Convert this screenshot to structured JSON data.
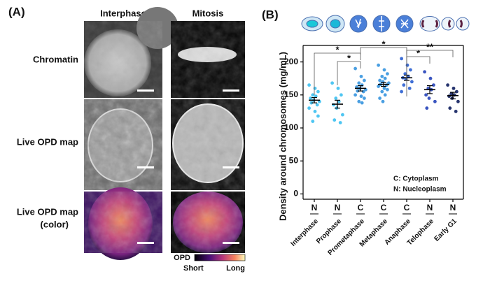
{
  "panel_a": {
    "label": "(A)",
    "columns": [
      "Interphase",
      "Mitosis"
    ],
    "rows": [
      [
        "Chromatin"
      ],
      [
        "Live OPD map"
      ],
      [
        "Live OPD map",
        "(color)"
      ]
    ],
    "colorbar": {
      "title": "OPD",
      "min_label": "Short",
      "max_label": "Long"
    }
  },
  "chart_data": {
    "type": "strip",
    "panel_label": "(B)",
    "y_label": "Density around chromosomes (mg/mL)",
    "categories": [
      "Interphase",
      "Prophase",
      "Prometaphase",
      "Metaphase",
      "Anaphase",
      "Telophase",
      "Early G1"
    ],
    "group_labels": [
      "N",
      "N",
      "C",
      "C",
      "C",
      "N",
      "N"
    ],
    "colors": [
      "#4fc6f2",
      "#4fc6f2",
      "#4a9fe2",
      "#4a9fe2",
      "#3f6fd6",
      "#3a55c0",
      "#26346e"
    ],
    "points": [
      [
        165,
        160,
        155,
        150,
        148,
        145,
        142,
        140,
        138,
        135,
        130,
        125,
        118,
        110
      ],
      [
        168,
        160,
        150,
        145,
        140,
        135,
        130,
        120,
        112,
        108
      ],
      [
        190,
        178,
        172,
        168,
        165,
        162,
        160,
        158,
        156,
        155,
        150,
        148,
        145,
        140,
        138
      ],
      [
        195,
        188,
        182,
        178,
        175,
        172,
        170,
        168,
        166,
        165,
        163,
        160,
        158,
        155,
        150,
        145,
        140
      ],
      [
        205,
        195,
        188,
        182,
        178,
        176,
        174,
        170,
        165,
        160,
        155
      ],
      [
        185,
        175,
        165,
        160,
        158,
        150,
        145,
        140,
        130
      ],
      [
        165,
        160,
        155,
        152,
        150,
        148,
        145,
        140,
        130,
        125
      ]
    ],
    "means": [
      142,
      136,
      160,
      166,
      176,
      158,
      149
    ],
    "errors": [
      4,
      6,
      4,
      3,
      4,
      6,
      5
    ],
    "significance": [
      {
        "from": 0,
        "to": 2,
        "label": "*"
      },
      {
        "from": 1,
        "to": 2,
        "label": "*"
      },
      {
        "from": 2,
        "to": 4,
        "label": "*"
      },
      {
        "from": 4,
        "to": 5,
        "label": "*"
      },
      {
        "from": 4,
        "to": 6,
        "label": "**"
      }
    ],
    "legend": [
      "C: Cytoplasm",
      "N: Nucleoplasm"
    ],
    "ylim": [
      -8,
      225
    ],
    "yticks": [
      0,
      50,
      100,
      150,
      200
    ]
  }
}
